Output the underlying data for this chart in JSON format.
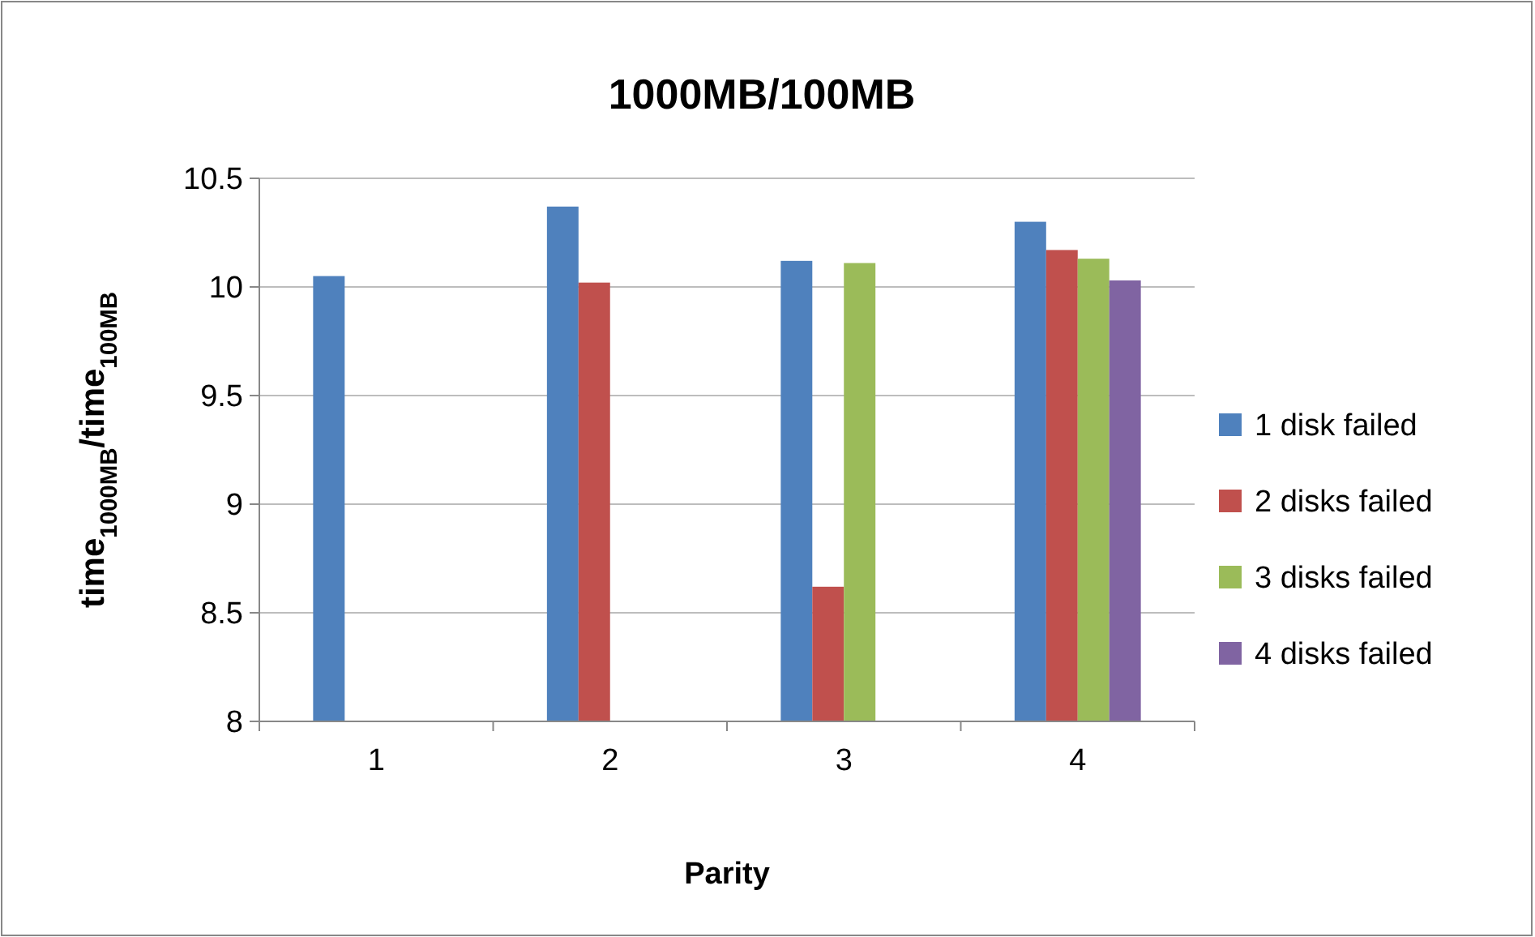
{
  "chart_data": {
    "type": "bar",
    "title": "1000MB/100MB",
    "xlabel": "Parity",
    "ylabel": "time$_{1000MB}$/time$_{100MB}$",
    "categories": [
      "1",
      "2",
      "3",
      "4"
    ],
    "series": [
      {
        "name": "1 disk failed",
        "color": "#4f81bd",
        "values": [
          10.05,
          10.37,
          10.12,
          10.3
        ]
      },
      {
        "name": "2 disks failed",
        "color": "#c0504d",
        "values": [
          null,
          10.02,
          8.62,
          10.17
        ]
      },
      {
        "name": "3 disks failed",
        "color": "#9bbb59",
        "values": [
          null,
          null,
          10.11,
          10.13
        ]
      },
      {
        "name": "4 disks failed",
        "color": "#8064a2",
        "values": [
          null,
          null,
          null,
          10.03
        ]
      }
    ],
    "ylim": [
      8,
      10.5
    ],
    "yticks": [
      8,
      8.5,
      9,
      9.5,
      10,
      10.5
    ],
    "grid": "y",
    "legend": "right"
  }
}
